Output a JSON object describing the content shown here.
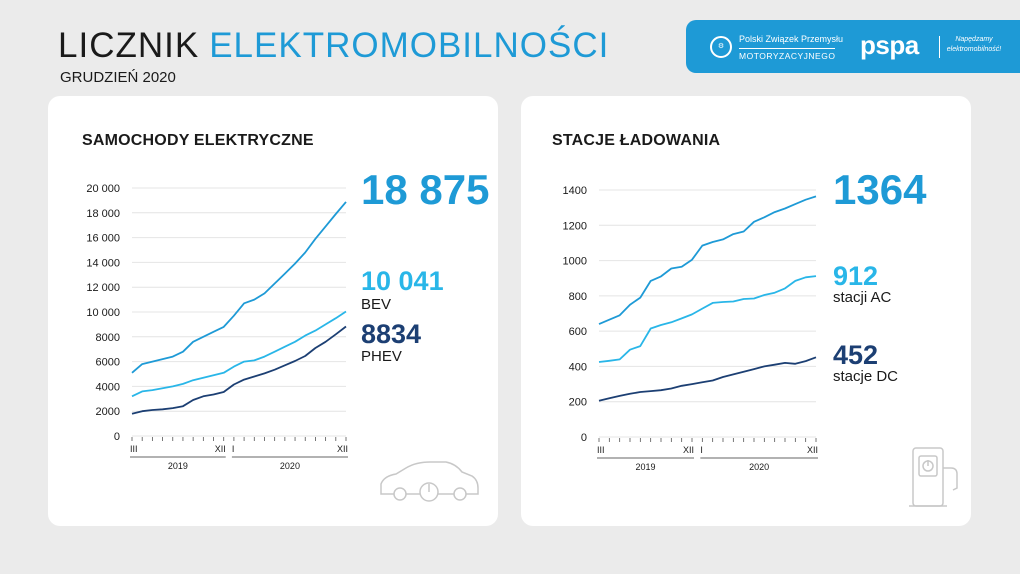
{
  "header": {
    "title_part1": "LICZNIK",
    "title_part2": "ELEKTROMOBILNOŚCI",
    "subtitle": "GRUDZIEŃ 2020"
  },
  "logos": {
    "pzpm_line1": "Polski Związek Przemysłu",
    "pzpm_line2": "MOTORYZACYJNEGO",
    "pspa": "pspa",
    "pspa_tagline": "Napędzamy elektromobilność!"
  },
  "colors": {
    "accent": "#1e9ad6",
    "light_series": "#29b6e8",
    "dark_series": "#1c3f73",
    "headline": "#1e9ad6"
  },
  "cars": {
    "title": "SAMOCHODY ELEKTRYCZNE",
    "total": "18 875",
    "bev_value": "10 041",
    "bev_label": "BEV",
    "phev_value": "8834",
    "phev_label": "PHEV",
    "icon": "car-charging-icon"
  },
  "stations": {
    "title": "STACJE ŁADOWANIA",
    "total": "1364",
    "ac_value": "912",
    "ac_label": "stacji AC",
    "dc_value": "452",
    "dc_label": "stacje DC",
    "icon": "charging-station-icon"
  },
  "chart_data": [
    {
      "type": "line",
      "x_months": [
        "2019-03",
        "2019-04",
        "2019-05",
        "2019-06",
        "2019-07",
        "2019-08",
        "2019-09",
        "2019-10",
        "2019-11",
        "2019-12",
        "2020-01",
        "2020-02",
        "2020-03",
        "2020-04",
        "2020-05",
        "2020-06",
        "2020-07",
        "2020-08",
        "2020-09",
        "2020-10",
        "2020-11",
        "2020-12"
      ],
      "x_tick_labels": [
        "III",
        "XII",
        "I",
        "XII"
      ],
      "year_labels": [
        "2019",
        "2020"
      ],
      "y_ticks": [
        "0",
        "2000",
        "4000",
        "6000",
        "8000",
        "10 000",
        "12 000",
        "14 000",
        "16 000",
        "18 000",
        "20 000"
      ],
      "ylim": [
        0,
        20000
      ],
      "series": [
        {
          "values": [
            5100,
            5800,
            6000,
            6200,
            6400,
            6800,
            7600,
            8000,
            8400,
            8800,
            9700,
            10700,
            11000,
            11500,
            12300,
            13100,
            13900,
            14800,
            15900,
            16900,
            17900,
            18875
          ]
        },
        {
          "values": [
            3200,
            3600,
            3700,
            3850,
            4000,
            4200,
            4500,
            4700,
            4900,
            5100,
            5600,
            6000,
            6100,
            6400,
            6800,
            7200,
            7600,
            8100,
            8500,
            9000,
            9500,
            10041
          ]
        },
        {
          "values": [
            1800,
            2000,
            2100,
            2150,
            2250,
            2400,
            2900,
            3200,
            3350,
            3550,
            4150,
            4550,
            4800,
            5050,
            5350,
            5700,
            6050,
            6450,
            7100,
            7600,
            8200,
            8834
          ]
        }
      ]
    },
    {
      "type": "line",
      "x_months": [
        "2019-03",
        "2019-04",
        "2019-05",
        "2019-06",
        "2019-07",
        "2019-08",
        "2019-09",
        "2019-10",
        "2019-11",
        "2019-12",
        "2020-01",
        "2020-02",
        "2020-03",
        "2020-04",
        "2020-05",
        "2020-06",
        "2020-07",
        "2020-08",
        "2020-09",
        "2020-10",
        "2020-11",
        "2020-12"
      ],
      "x_tick_labels": [
        "III",
        "XII",
        "I",
        "XII"
      ],
      "year_labels": [
        "2019",
        "2020"
      ],
      "y_ticks": [
        "0",
        "200",
        "400",
        "600",
        "800",
        "1000",
        "1200",
        "1400"
      ],
      "ylim": [
        0,
        1400
      ],
      "series": [
        {
          "values": [
            640,
            665,
            690,
            750,
            790,
            885,
            910,
            955,
            965,
            1005,
            1085,
            1105,
            1120,
            1150,
            1165,
            1220,
            1245,
            1275,
            1295,
            1320,
            1345,
            1364
          ]
        },
        {
          "values": [
            425,
            432,
            440,
            495,
            515,
            615,
            635,
            650,
            672,
            695,
            728,
            760,
            765,
            768,
            782,
            785,
            805,
            818,
            842,
            885,
            905,
            912
          ]
        },
        {
          "values": [
            205,
            220,
            233,
            245,
            255,
            260,
            265,
            275,
            290,
            300,
            310,
            320,
            340,
            355,
            370,
            385,
            400,
            410,
            420,
            415,
            430,
            452
          ]
        }
      ]
    }
  ]
}
